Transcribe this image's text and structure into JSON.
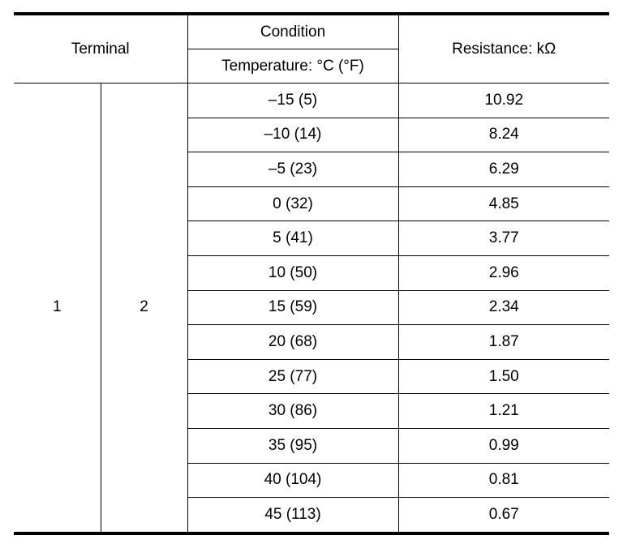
{
  "header": {
    "terminal": "Terminal",
    "condition": "Condition",
    "temperature": "Temperature: °C (°F)",
    "resistance": "Resistance: kΩ"
  },
  "terminals": {
    "positive": "1",
    "negative": "2"
  },
  "rows": [
    {
      "temp": "–15 (5)",
      "resistance": "10.92"
    },
    {
      "temp": "–10 (14)",
      "resistance": "8.24"
    },
    {
      "temp": "–5 (23)",
      "resistance": "6.29"
    },
    {
      "temp": "0 (32)",
      "resistance": "4.85"
    },
    {
      "temp": "5 (41)",
      "resistance": "3.77"
    },
    {
      "temp": "10 (50)",
      "resistance": "2.96"
    },
    {
      "temp": "15 (59)",
      "resistance": "2.34"
    },
    {
      "temp": "20 (68)",
      "resistance": "1.87"
    },
    {
      "temp": "25 (77)",
      "resistance": "1.50"
    },
    {
      "temp": "30 (86)",
      "resistance": "1.21"
    },
    {
      "temp": "35 (95)",
      "resistance": "0.99"
    },
    {
      "temp": "40 (104)",
      "resistance": "0.81"
    },
    {
      "temp": "45 (113)",
      "resistance": "0.67"
    }
  ]
}
